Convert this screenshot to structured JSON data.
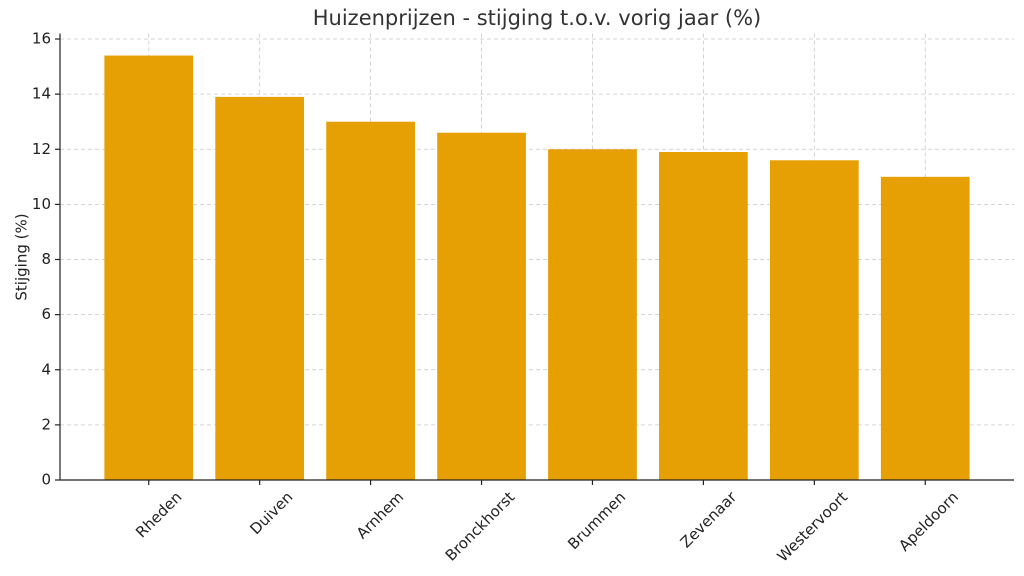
{
  "chart_data": {
    "type": "bar",
    "title": "Huizenprijzen - stijging t.o.v. vorig jaar (%)",
    "y_label": "Stijging (%)",
    "categories": [
      "Rheden",
      "Duiven",
      "Arnhem",
      "Bronckhorst",
      "Brummen",
      "Zevenaar",
      "Westervoort",
      "Apeldoorn"
    ],
    "values": [
      15.4,
      13.9,
      13.0,
      12.6,
      12.0,
      11.9,
      11.6,
      11.0
    ],
    "color": "#e6a004",
    "ylim": [
      0,
      16.2
    ],
    "yticks": [
      0,
      2,
      4,
      6,
      8,
      10,
      12,
      14,
      16
    ],
    "grid": true
  }
}
